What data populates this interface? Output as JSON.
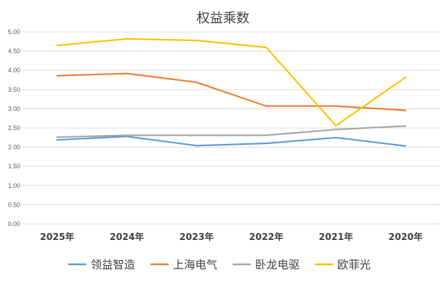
{
  "chart_data": {
    "type": "line",
    "title": "权益乘数",
    "xlabel": "",
    "ylabel": "",
    "categories": [
      "2025年",
      "2024年",
      "2023年",
      "2022年",
      "2021年",
      "2020年"
    ],
    "ylim": [
      0,
      5
    ],
    "yticks": [
      "0.00",
      "0.50",
      "1.00",
      "1.50",
      "2.00",
      "2.50",
      "3.00",
      "3.50",
      "4.00",
      "4.50",
      "5.00"
    ],
    "grid": true,
    "legend": "bottom",
    "series": [
      {
        "name": "领益智造",
        "color": "#5B9BD5",
        "values": [
          2.19,
          2.28,
          2.04,
          2.1,
          2.25,
          2.03
        ]
      },
      {
        "name": "上海电气",
        "color": "#ED7D31",
        "values": [
          3.86,
          3.92,
          3.69,
          3.07,
          3.07,
          2.96
        ]
      },
      {
        "name": "卧龙电驱",
        "color": "#A5A5A5",
        "values": [
          2.26,
          2.31,
          2.31,
          2.31,
          2.46,
          2.55
        ]
      },
      {
        "name": "欧菲光",
        "color": "#FFC000",
        "values": [
          4.65,
          4.82,
          4.78,
          4.6,
          2.56,
          3.82
        ]
      }
    ]
  }
}
